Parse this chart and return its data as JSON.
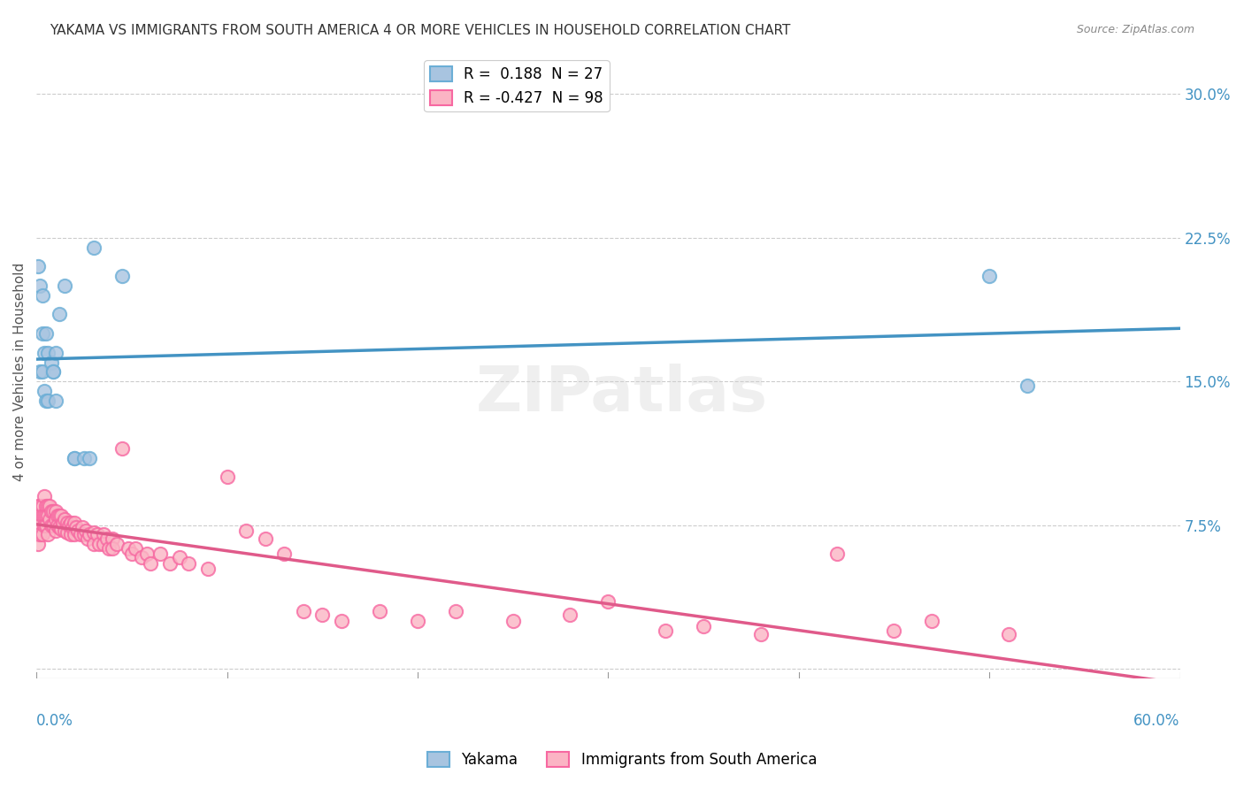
{
  "title": "YAKAMA VS IMMIGRANTS FROM SOUTH AMERICA 4 OR MORE VEHICLES IN HOUSEHOLD CORRELATION CHART",
  "source": "Source: ZipAtlas.com",
  "ylabel": "4 or more Vehicles in Household",
  "ytick_vals": [
    0.0,
    0.075,
    0.15,
    0.225,
    0.3
  ],
  "ytick_labels": [
    "",
    "7.5%",
    "15.0%",
    "22.5%",
    "30.0%"
  ],
  "xmin": 0.0,
  "xmax": 0.6,
  "ymin": -0.005,
  "ymax": 0.315,
  "yakama_color": "#6baed6",
  "immigrants_color": "#f768a1",
  "yakama_scatter_color": "#a8c4e0",
  "immigrants_scatter_color": "#fbb4c4",
  "trend_yakama_color": "#4393c3",
  "trend_immigrants_color": "#e05a8a",
  "tick_color": "#4393c3",
  "grid_color": "#cccccc",
  "watermark_text": "ZIPatlas",
  "legend_label_yakama": "R =  0.188  N = 27",
  "legend_label_immigrants": "R = -0.427  N = 98",
  "bottom_label_yakama": "Yakama",
  "bottom_label_immigrants": "Immigrants from South America",
  "yakama_x": [
    0.001,
    0.002,
    0.002,
    0.003,
    0.003,
    0.003,
    0.004,
    0.004,
    0.005,
    0.005,
    0.006,
    0.006,
    0.008,
    0.009,
    0.009,
    0.01,
    0.01,
    0.012,
    0.015,
    0.02,
    0.02,
    0.025,
    0.028,
    0.03,
    0.045,
    0.5,
    0.52
  ],
  "yakama_y": [
    0.21,
    0.2,
    0.155,
    0.195,
    0.175,
    0.155,
    0.165,
    0.145,
    0.175,
    0.14,
    0.165,
    0.14,
    0.16,
    0.155,
    0.155,
    0.165,
    0.14,
    0.185,
    0.2,
    0.11,
    0.11,
    0.11,
    0.11,
    0.22,
    0.205,
    0.205,
    0.148
  ],
  "immigrants_x": [
    0.001,
    0.001,
    0.001,
    0.001,
    0.001,
    0.002,
    0.002,
    0.002,
    0.002,
    0.003,
    0.003,
    0.003,
    0.004,
    0.004,
    0.004,
    0.005,
    0.005,
    0.005,
    0.006,
    0.006,
    0.006,
    0.007,
    0.007,
    0.008,
    0.008,
    0.009,
    0.009,
    0.01,
    0.01,
    0.01,
    0.011,
    0.011,
    0.012,
    0.012,
    0.013,
    0.013,
    0.014,
    0.015,
    0.015,
    0.016,
    0.016,
    0.017,
    0.018,
    0.018,
    0.019,
    0.02,
    0.02,
    0.021,
    0.022,
    0.023,
    0.024,
    0.025,
    0.026,
    0.027,
    0.028,
    0.03,
    0.03,
    0.032,
    0.033,
    0.035,
    0.035,
    0.037,
    0.038,
    0.04,
    0.04,
    0.042,
    0.045,
    0.048,
    0.05,
    0.052,
    0.055,
    0.058,
    0.06,
    0.065,
    0.07,
    0.075,
    0.08,
    0.09,
    0.1,
    0.11,
    0.12,
    0.13,
    0.14,
    0.15,
    0.16,
    0.18,
    0.2,
    0.22,
    0.25,
    0.28,
    0.3,
    0.33,
    0.35,
    0.38,
    0.42,
    0.45,
    0.47,
    0.51
  ],
  "immigrants_y": [
    0.085,
    0.08,
    0.075,
    0.07,
    0.065,
    0.085,
    0.08,
    0.075,
    0.07,
    0.085,
    0.08,
    0.07,
    0.09,
    0.08,
    0.075,
    0.085,
    0.08,
    0.075,
    0.085,
    0.08,
    0.07,
    0.085,
    0.078,
    0.082,
    0.075,
    0.082,
    0.075,
    0.082,
    0.078,
    0.072,
    0.08,
    0.075,
    0.08,
    0.074,
    0.08,
    0.073,
    0.076,
    0.078,
    0.072,
    0.076,
    0.071,
    0.075,
    0.076,
    0.07,
    0.074,
    0.076,
    0.07,
    0.074,
    0.072,
    0.07,
    0.074,
    0.07,
    0.072,
    0.068,
    0.07,
    0.071,
    0.065,
    0.07,
    0.065,
    0.07,
    0.065,
    0.068,
    0.063,
    0.068,
    0.063,
    0.065,
    0.115,
    0.063,
    0.06,
    0.063,
    0.058,
    0.06,
    0.055,
    0.06,
    0.055,
    0.058,
    0.055,
    0.052,
    0.1,
    0.072,
    0.068,
    0.06,
    0.03,
    0.028,
    0.025,
    0.03,
    0.025,
    0.03,
    0.025,
    0.028,
    0.035,
    0.02,
    0.022,
    0.018,
    0.06,
    0.02,
    0.025,
    0.018
  ]
}
